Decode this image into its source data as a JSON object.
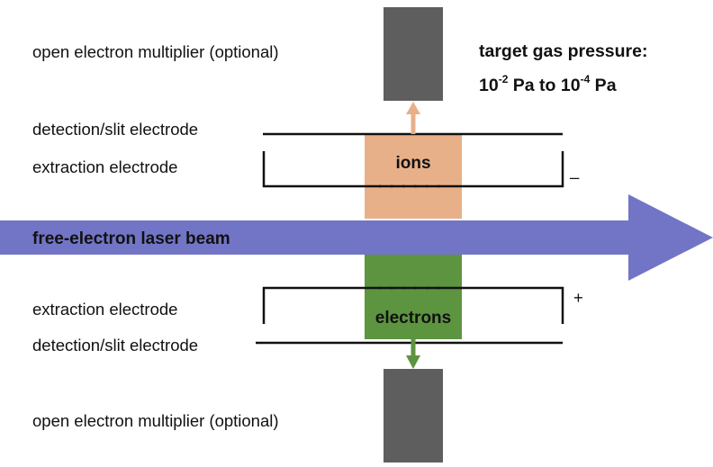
{
  "labels": {
    "multiplier_top": "open electron multiplier (optional)",
    "detection_top": "detection/slit electrode",
    "extraction_top": "extraction electrode",
    "extraction_bottom": "extraction electrode",
    "detection_bottom": "detection/slit electrode",
    "multiplier_bottom": "open electron multiplier (optional)",
    "beam": "free-electron laser beam",
    "ions": "ions",
    "electrons": "electrons",
    "sign_top": "–",
    "sign_bottom": "+"
  },
  "pressure": {
    "line1": "target gas pressure:",
    "base1": "10",
    "exp1": "-2",
    "mid": " Pa to ",
    "base2": "10",
    "exp2": "-4",
    "unit": " Pa"
  },
  "colors": {
    "beam": "#7275c6",
    "ions": "#e8b088",
    "electrons": "#5d9440",
    "multiplier": "#5e5e5e",
    "electrode": "#111111"
  }
}
